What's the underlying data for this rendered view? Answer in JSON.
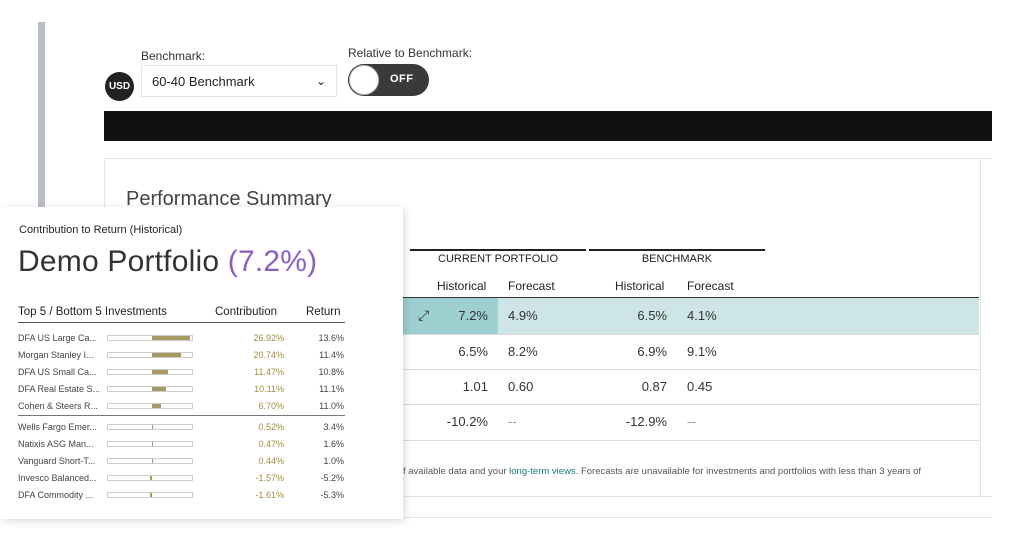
{
  "controls": {
    "benchmark_label": "Benchmark:",
    "currency": "USD",
    "benchmark_value": "60-40 Benchmark",
    "relative_label": "Relative to Benchmark:",
    "toggle_state": "OFF"
  },
  "performance": {
    "title": "Performance Summary",
    "group_current": "CURRENT PORTFOLIO",
    "group_benchmark": "BENCHMARK",
    "col_historical": "Historical",
    "col_forecast": "Forecast",
    "rows": [
      {
        "cur_hist": "7.2%",
        "cur_fc": "4.9%",
        "bm_hist": "6.5%",
        "bm_fc": "4.1%"
      },
      {
        "cur_hist": "6.5%",
        "cur_fc": "8.2%",
        "bm_hist": "6.9%",
        "bm_fc": "9.1%"
      },
      {
        "cur_hist": "1.01",
        "cur_fc": "0.60",
        "bm_hist": "0.87",
        "bm_fc": "0.45"
      },
      {
        "cur_hist": "-10.2%",
        "cur_fc": "--",
        "bm_hist": "-12.9%",
        "bm_fc": "--"
      }
    ],
    "footnote_pre": "f available data and your ",
    "footnote_link": "long-term views",
    "footnote_post": ". Forecasts are unavailable for investments and portfolios with less than 3 years of"
  },
  "popup": {
    "subtitle": "Contribution to Return (Historical)",
    "title_name": "Demo Portfolio ",
    "title_pct": "(7.2%)",
    "hdr_investments": "Top 5 / Bottom 5 Investments",
    "hdr_contribution": "Contribution",
    "hdr_return": "Return",
    "top": [
      {
        "name": "DFA US Large Ca...",
        "contribution": "26.92%",
        "return": "13.6%",
        "value": 26.92
      },
      {
        "name": "Morgan Stanley I...",
        "contribution": "20.74%",
        "return": "11.4%",
        "value": 20.74
      },
      {
        "name": "DFA US Small Ca...",
        "contribution": "11.47%",
        "return": "10.8%",
        "value": 11.47
      },
      {
        "name": "DFA Real Estate S...",
        "contribution": "10.11%",
        "return": "11.1%",
        "value": 10.11
      },
      {
        "name": "Cohen & Steers R...",
        "contribution": "6.70%",
        "return": "11.0%",
        "value": 6.7
      }
    ],
    "bottom": [
      {
        "name": "Wells Fargo Emer...",
        "contribution": "0.52%",
        "return": "3.4%",
        "value": 0.52
      },
      {
        "name": "Natixis ASG Man...",
        "contribution": "0.47%",
        "return": "1.6%",
        "value": 0.47
      },
      {
        "name": "Vanguard Short-T...",
        "contribution": "0.44%",
        "return": "1.0%",
        "value": 0.44
      },
      {
        "name": "Invesco Balanced...",
        "contribution": "-1.57%",
        "return": "-5.2%",
        "value": -1.57
      },
      {
        "name": "DFA Commodity ...",
        "contribution": "-1.61%",
        "return": "-5.3%",
        "value": -1.61
      }
    ]
  },
  "colors": {
    "bar": "#a59b62",
    "highlight": "#cde5e6",
    "accent": "#8a5fc2"
  }
}
